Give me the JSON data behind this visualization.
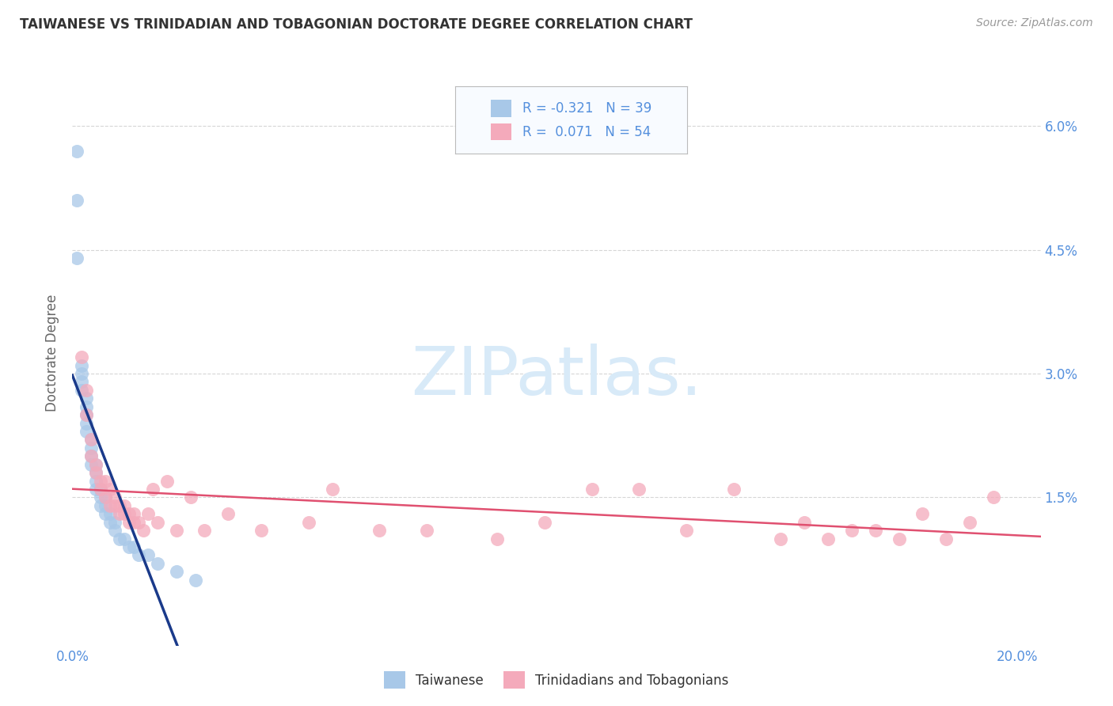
{
  "title": "TAIWANESE VS TRINIDADIAN AND TOBAGONIAN DOCTORATE DEGREE CORRELATION CHART",
  "source": "Source: ZipAtlas.com",
  "ylabel": "Doctorate Degree",
  "xmin": 0.0,
  "xmax": 0.205,
  "ymin": -0.003,
  "ymax": 0.068,
  "ytick_positions": [
    0.015,
    0.03,
    0.045,
    0.06
  ],
  "ytick_labels": [
    "1.5%",
    "3.0%",
    "4.5%",
    "6.0%"
  ],
  "xtick_positions": [
    0.0,
    0.04,
    0.08,
    0.12,
    0.16,
    0.2
  ],
  "xtick_labels": [
    "0.0%",
    "",
    "",
    "",
    "",
    "20.0%"
  ],
  "legend_line1": "R = -0.321   N = 39",
  "legend_line2": "R =  0.071   N = 54",
  "blue_scatter": "#a8c8e8",
  "pink_scatter": "#f4aabb",
  "trendline_blue": "#1a3a8a",
  "trendline_pink": "#e05070",
  "bg_color": "#ffffff",
  "grid_color": "#cccccc",
  "title_color": "#333333",
  "tick_color": "#5590dd",
  "source_color": "#999999",
  "watermark_color": "#d8eaf8",
  "taiwanese_x": [
    0.001,
    0.001,
    0.001,
    0.002,
    0.002,
    0.002,
    0.002,
    0.003,
    0.003,
    0.003,
    0.003,
    0.003,
    0.004,
    0.004,
    0.004,
    0.004,
    0.005,
    0.005,
    0.005,
    0.005,
    0.006,
    0.006,
    0.006,
    0.007,
    0.007,
    0.007,
    0.008,
    0.008,
    0.009,
    0.009,
    0.01,
    0.011,
    0.012,
    0.013,
    0.014,
    0.016,
    0.018,
    0.022,
    0.026
  ],
  "taiwanese_y": [
    0.057,
    0.051,
    0.044,
    0.031,
    0.03,
    0.029,
    0.028,
    0.027,
    0.026,
    0.025,
    0.024,
    0.023,
    0.022,
    0.021,
    0.02,
    0.019,
    0.019,
    0.018,
    0.017,
    0.016,
    0.016,
    0.015,
    0.014,
    0.015,
    0.014,
    0.013,
    0.013,
    0.012,
    0.012,
    0.011,
    0.01,
    0.01,
    0.009,
    0.009,
    0.008,
    0.008,
    0.007,
    0.006,
    0.005
  ],
  "trinidadian_x": [
    0.002,
    0.003,
    0.003,
    0.004,
    0.004,
    0.005,
    0.005,
    0.006,
    0.006,
    0.007,
    0.007,
    0.008,
    0.008,
    0.009,
    0.009,
    0.01,
    0.01,
    0.011,
    0.011,
    0.012,
    0.012,
    0.013,
    0.013,
    0.014,
    0.015,
    0.016,
    0.017,
    0.018,
    0.02,
    0.022,
    0.025,
    0.028,
    0.033,
    0.04,
    0.05,
    0.055,
    0.065,
    0.075,
    0.09,
    0.1,
    0.11,
    0.12,
    0.13,
    0.14,
    0.15,
    0.155,
    0.16,
    0.165,
    0.17,
    0.175,
    0.18,
    0.185,
    0.19,
    0.195
  ],
  "trinidadian_y": [
    0.032,
    0.028,
    0.025,
    0.022,
    0.02,
    0.019,
    0.018,
    0.017,
    0.016,
    0.017,
    0.015,
    0.016,
    0.014,
    0.015,
    0.014,
    0.014,
    0.013,
    0.014,
    0.013,
    0.013,
    0.012,
    0.013,
    0.012,
    0.012,
    0.011,
    0.013,
    0.016,
    0.012,
    0.017,
    0.011,
    0.015,
    0.011,
    0.013,
    0.011,
    0.012,
    0.016,
    0.011,
    0.011,
    0.01,
    0.012,
    0.016,
    0.016,
    0.011,
    0.016,
    0.01,
    0.012,
    0.01,
    0.011,
    0.011,
    0.01,
    0.013,
    0.01,
    0.012,
    0.015
  ]
}
